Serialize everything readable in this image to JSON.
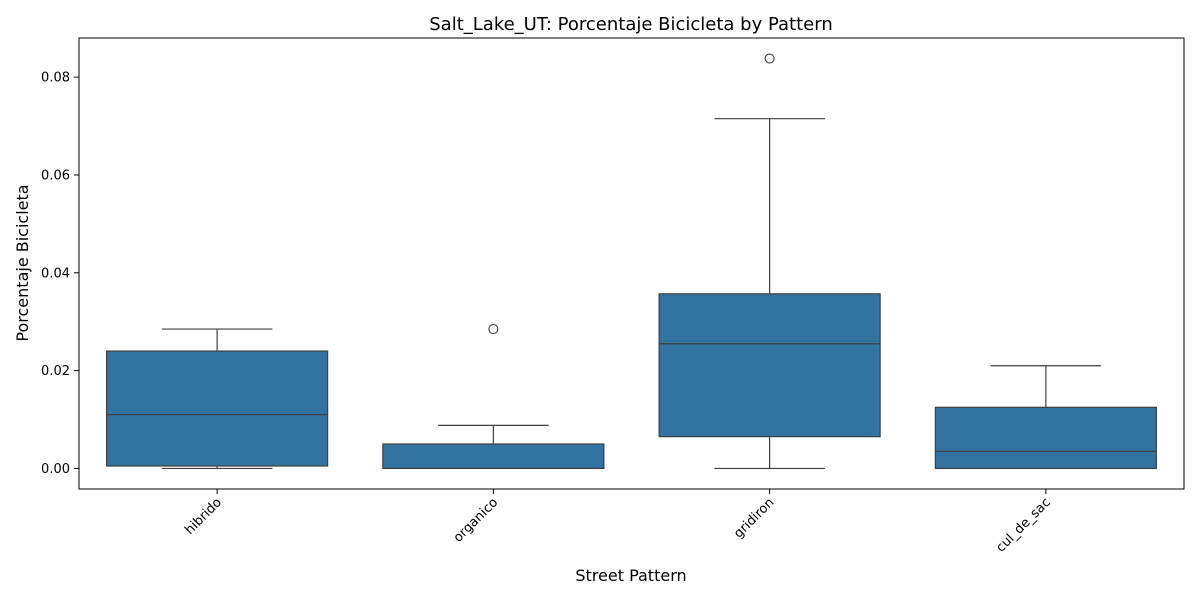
{
  "chart_data": {
    "type": "box",
    "title": "Salt_Lake_UT: Porcentaje Bicicleta by Pattern",
    "xlabel": "Street Pattern",
    "ylabel": "Porcentaje Bicicleta",
    "ylim": [
      -0.0042,
      0.088
    ],
    "yticks": [
      0.0,
      0.02,
      0.04,
      0.06,
      0.08
    ],
    "ytick_labels": [
      "0.00",
      "0.02",
      "0.04",
      "0.06",
      "0.08"
    ],
    "categories": [
      "hibrido",
      "organico",
      "gridiron",
      "cul_de_sac"
    ],
    "boxes": [
      {
        "category": "hibrido",
        "whisker_low": 0.0,
        "q1": 0.0005,
        "median": 0.011,
        "q3": 0.024,
        "whisker_high": 0.0285,
        "outliers": []
      },
      {
        "category": "organico",
        "whisker_low": 0.0,
        "q1": 0.0,
        "median": 0.0,
        "q3": 0.005,
        "whisker_high": 0.0088,
        "outliers": [
          0.0285
        ]
      },
      {
        "category": "gridiron",
        "whisker_low": 0.0,
        "q1": 0.0065,
        "median": 0.0255,
        "q3": 0.0357,
        "whisker_high": 0.0715,
        "outliers": [
          0.0838
        ]
      },
      {
        "category": "cul_de_sac",
        "whisker_low": 0.0,
        "q1": 0.0,
        "median": 0.0035,
        "q3": 0.0125,
        "whisker_high": 0.021,
        "outliers": []
      }
    ],
    "box_color": "#3274a1",
    "line_color": "#3f3f3f",
    "grid": false,
    "legend": false
  }
}
